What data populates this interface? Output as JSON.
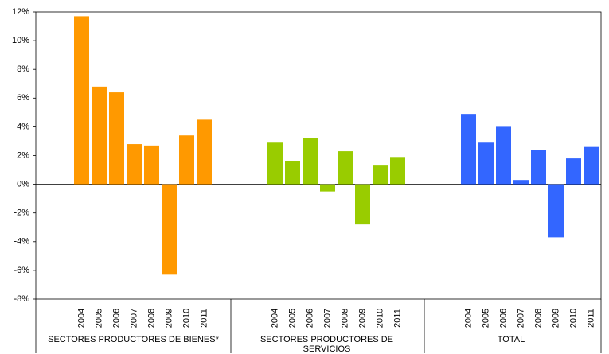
{
  "chart_data": {
    "type": "bar",
    "categories": [
      "2004",
      "2005",
      "2006",
      "2007",
      "2008",
      "2009",
      "2010",
      "2011"
    ],
    "series": [
      {
        "name": "SECTORES PRODUCTORES DE BIENES*",
        "color": "#ff9900",
        "values": [
          11.7,
          6.8,
          6.4,
          2.8,
          2.7,
          -6.3,
          3.4,
          4.5
        ]
      },
      {
        "name": "SECTORES PRODUCTORES DE SERVICIOS",
        "color": "#99cc00",
        "values": [
          2.9,
          1.6,
          3.2,
          -0.5,
          2.3,
          -2.8,
          1.3,
          1.9
        ]
      },
      {
        "name": "TOTAL",
        "color": "#3366ff",
        "values": [
          4.9,
          2.9,
          4.0,
          0.3,
          2.4,
          -3.7,
          1.8,
          2.6
        ]
      }
    ],
    "ylim": [
      -8,
      12
    ],
    "yticks": [
      {
        "value": -8,
        "label": "-8%"
      },
      {
        "value": -6,
        "label": "-6%"
      },
      {
        "value": -4,
        "label": "-4%"
      },
      {
        "value": -2,
        "label": "-2%"
      },
      {
        "value": 0,
        "label": "0%"
      },
      {
        "value": 2,
        "label": "2%"
      },
      {
        "value": 4,
        "label": "4%"
      },
      {
        "value": 6,
        "label": "6%"
      },
      {
        "value": 8,
        "label": "8%"
      },
      {
        "value": 10,
        "label": "10%"
      },
      {
        "value": 12,
        "label": "12%"
      }
    ]
  }
}
